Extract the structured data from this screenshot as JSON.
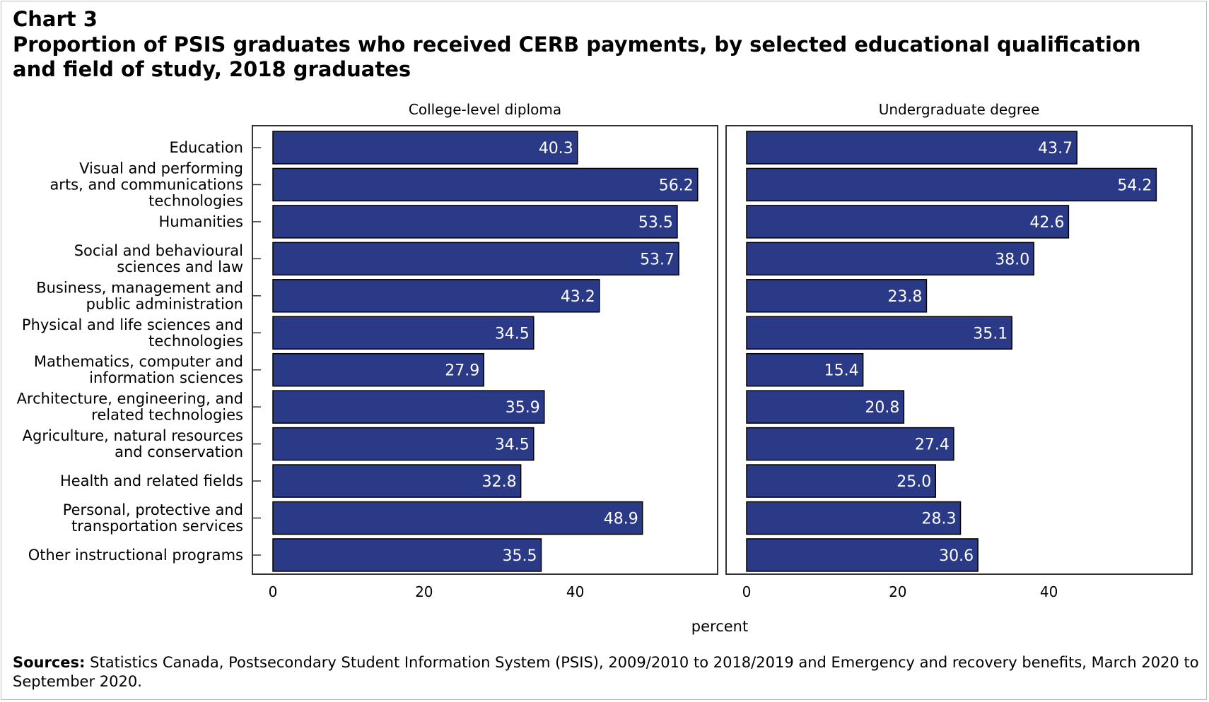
{
  "chart_label": "Chart 3",
  "title": "Proportion of PSIS graduates who received CERB payments, by selected educational qualification and field of study, 2018 graduates",
  "sources_label": "Sources:",
  "sources_text": "Statistics Canada, Postsecondary Student Information System (PSIS), 2009/2010 to 2018/2019 and Emergency and recovery benefits, March 2020 to September 2020.",
  "colors": {
    "bar": "#2b3a87",
    "bar_outline": "#000000",
    "label": "#ffffff"
  },
  "chart_data": {
    "type": "bar",
    "orientation": "horizontal",
    "xlabel": "percent",
    "xlim": [
      0,
      60
    ],
    "xticks": [
      0,
      20,
      40
    ],
    "categories": [
      [
        "Education"
      ],
      [
        "Visual and performing",
        "arts, and communications",
        "technologies"
      ],
      [
        "Humanities"
      ],
      [
        "Social and behavioural",
        "sciences and law"
      ],
      [
        "Business, management and",
        "public administration"
      ],
      [
        "Physical and life sciences and",
        "technologies"
      ],
      [
        "Mathematics, computer and",
        "information sciences"
      ],
      [
        "Architecture, engineering, and",
        "related technologies"
      ],
      [
        "Agriculture, natural resources",
        "and conservation"
      ],
      [
        "Health and related fields"
      ],
      [
        "Personal, protective and",
        "transportation services"
      ],
      [
        "Other instructional programs"
      ]
    ],
    "panels": [
      {
        "name": "College-level diploma",
        "values": [
          40.3,
          56.2,
          53.5,
          53.7,
          43.2,
          34.5,
          27.9,
          35.9,
          34.5,
          32.8,
          48.9,
          35.5
        ]
      },
      {
        "name": "Undergraduate degree",
        "values": [
          43.7,
          54.2,
          42.6,
          38.0,
          23.8,
          35.1,
          15.4,
          20.8,
          27.4,
          25.0,
          28.3,
          30.6
        ]
      }
    ]
  }
}
